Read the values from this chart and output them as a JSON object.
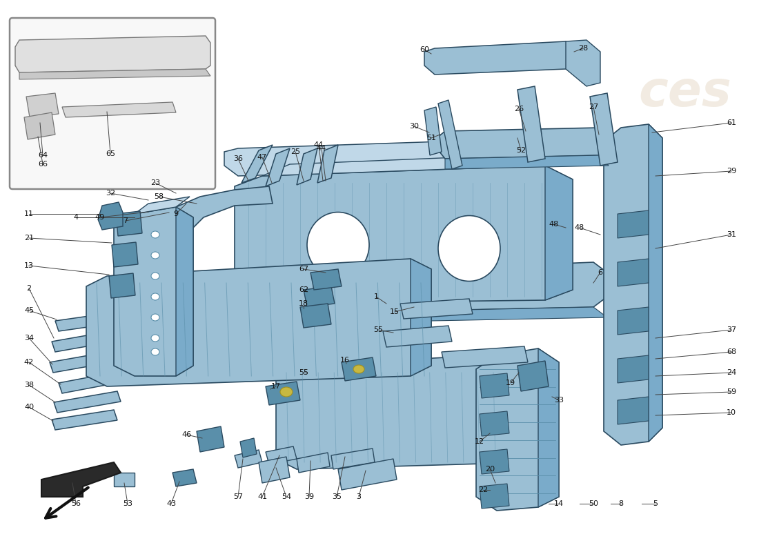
{
  "bg_color": "#ffffff",
  "part_color": "#9bbfd4",
  "part_color_mid": "#7aabca",
  "part_color_dark": "#5a8faa",
  "part_color_light": "#c0d8e8",
  "outline_color": "#2a4a60",
  "label_color": "#1a1a1a",
  "line_color": "#444444",
  "inset_bg": "#f8f8f8",
  "figsize": [
    11.0,
    8.0
  ],
  "dpi": 100
}
